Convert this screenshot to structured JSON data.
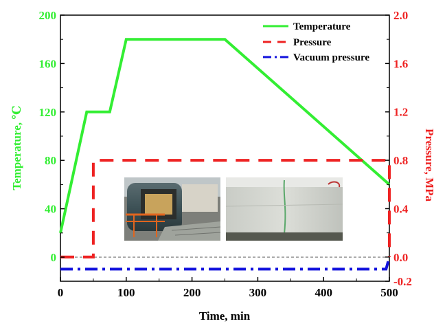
{
  "chart_data": {
    "type": "line",
    "title": "",
    "xlabel": "Time, min",
    "ylabel_left": "Temperature, ℃",
    "ylabel_right": "Pressure, MPa",
    "xlim": [
      0,
      500
    ],
    "ylim_left": [
      0,
      200
    ],
    "ylim_right": [
      -0.2,
      2.0
    ],
    "x_ticks": [
      0,
      100,
      200,
      300,
      400,
      500
    ],
    "x_tick_labels": [
      "0",
      "100",
      "200",
      "300",
      "400",
      "500"
    ],
    "y_left_ticks": [
      0,
      40,
      80,
      120,
      160,
      200
    ],
    "y_left_tick_labels": [
      "0",
      "40",
      "80",
      "120",
      "160",
      "200"
    ],
    "y_right_ticks": [
      0.0,
      0.4,
      0.8,
      1.2,
      1.6,
      2.0
    ],
    "y_right_extra_tick": -0.2,
    "y_right_tick_labels": [
      "0.0",
      "0.4",
      "0.8",
      "1.2",
      "1.6",
      "2.0",
      "-0.2"
    ],
    "grid": false,
    "legend_position": "top-right",
    "colors": {
      "temperature": "#33ee33",
      "pressure": "#ee2222",
      "vacuum": "#1111dd",
      "left_axis": "#33ee33",
      "right_axis": "#ee2222"
    },
    "series": [
      {
        "name": "Temperature",
        "axis": "left",
        "style": "solid",
        "x": [
          0,
          40,
          75,
          100,
          250,
          500
        ],
        "y": [
          20,
          120,
          120,
          180,
          180,
          60
        ]
      },
      {
        "name": "Pressure",
        "axis": "right",
        "style": "dashed",
        "x": [
          0,
          50,
          50,
          500,
          500
        ],
        "y": [
          0.0,
          0.0,
          0.8,
          0.8,
          0.0
        ]
      },
      {
        "name": "Vacuum pressure",
        "axis": "right",
        "style": "dash-dot",
        "x": [
          0,
          495,
          500
        ],
        "y": [
          -0.1,
          -0.1,
          0.0
        ]
      }
    ],
    "reference_line": {
      "axis": "left",
      "y": 0,
      "style": "thin-dashed",
      "color": "#555555"
    },
    "inset_photos": [
      "autoclave-photo-icon",
      "panel-photo-icon"
    ]
  }
}
